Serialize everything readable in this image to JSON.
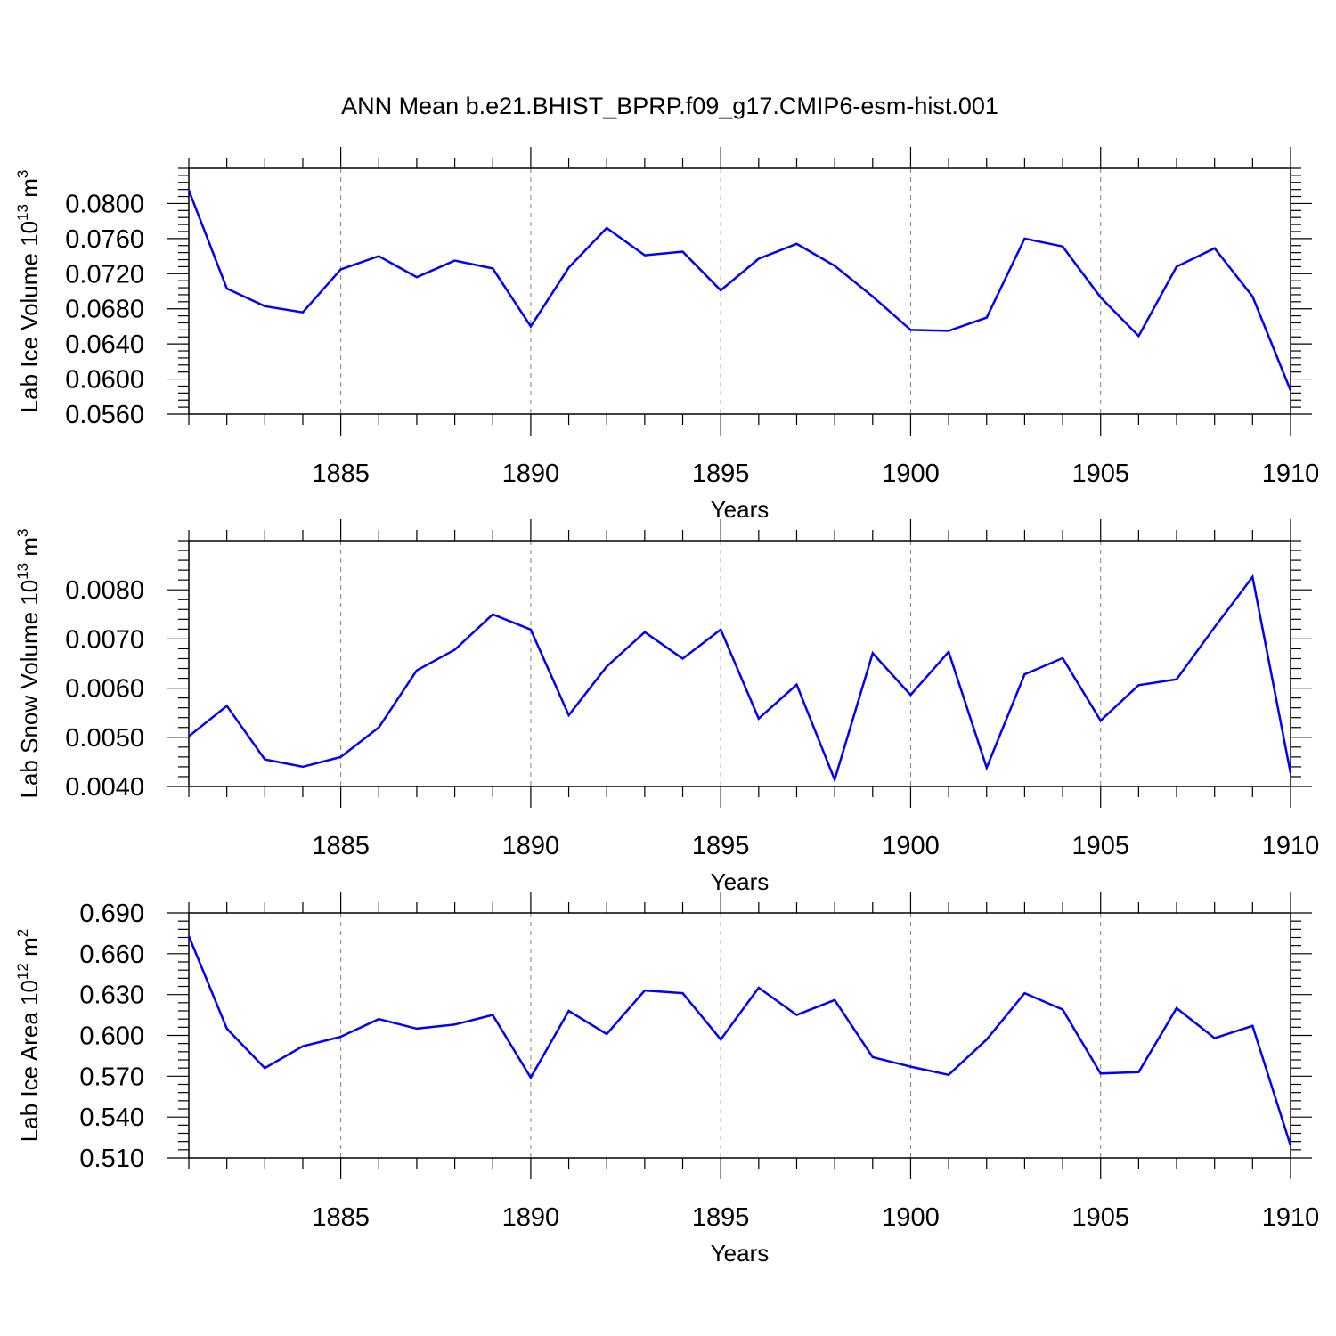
{
  "title": "ANN Mean b.e21.BHIST_BPRP.f09_g17.CMIP6-esm-hist.001",
  "colors": {
    "line": "#0000ff",
    "axis": "#000000",
    "grid": "#808080"
  },
  "chart_data": [
    {
      "type": "line",
      "xlabel": "Years",
      "ylabel": {
        "prefix": "Lab Ice Volume 10",
        "exp": "13",
        "unit": " m",
        "unit_exp": "3"
      },
      "xlim": [
        1881,
        1910
      ],
      "ylim": [
        0.056,
        0.084
      ],
      "grid": true,
      "xticks": [
        1885,
        1890,
        1895,
        1900,
        1905,
        1910
      ],
      "xtick_labels": [
        "1885",
        "1890",
        "1895",
        "1900",
        "1905",
        "1910"
      ],
      "yticks": [
        0.056,
        0.06,
        0.064,
        0.068,
        0.072,
        0.076,
        0.08
      ],
      "ytick_labels": [
        "0.0560",
        "0.0600",
        "0.0640",
        "0.0680",
        "0.0720",
        "0.0760",
        "0.0800"
      ],
      "x": [
        1881,
        1882,
        1883,
        1884,
        1885,
        1886,
        1887,
        1888,
        1889,
        1890,
        1891,
        1892,
        1893,
        1894,
        1895,
        1896,
        1897,
        1898,
        1899,
        1900,
        1901,
        1902,
        1903,
        1904,
        1905,
        1906,
        1907,
        1908,
        1909,
        1910
      ],
      "series": [
        {
          "values": [
            0.0815,
            0.0703,
            0.0683,
            0.0676,
            0.0725,
            0.074,
            0.0716,
            0.0735,
            0.0726,
            0.066,
            0.0727,
            0.0772,
            0.0741,
            0.0745,
            0.0701,
            0.0737,
            0.0754,
            0.0729,
            0.0694,
            0.0656,
            0.0655,
            0.067,
            0.076,
            0.0751,
            0.0693,
            0.0649,
            0.0728,
            0.0749,
            0.0694,
            0.0587
          ]
        }
      ]
    },
    {
      "type": "line",
      "xlabel": "Years",
      "ylabel": {
        "prefix": "Lab Snow Volume 10",
        "exp": "13",
        "unit": " m",
        "unit_exp": "3"
      },
      "xlim": [
        1881,
        1910
      ],
      "ylim": [
        0.004,
        0.009
      ],
      "grid": true,
      "xticks": [
        1885,
        1890,
        1895,
        1900,
        1905,
        1910
      ],
      "xtick_labels": [
        "1885",
        "1890",
        "1895",
        "1900",
        "1905",
        "1910"
      ],
      "yticks": [
        0.004,
        0.005,
        0.006,
        0.007,
        0.008
      ],
      "ytick_labels": [
        "0.0040",
        "0.0050",
        "0.0060",
        "0.0070",
        "0.0080"
      ],
      "x": [
        1881,
        1882,
        1883,
        1884,
        1885,
        1886,
        1887,
        1888,
        1889,
        1890,
        1891,
        1892,
        1893,
        1894,
        1895,
        1896,
        1897,
        1898,
        1899,
        1900,
        1901,
        1902,
        1903,
        1904,
        1905,
        1906,
        1907,
        1908,
        1909,
        1910
      ],
      "series": [
        {
          "values": [
            0.00502,
            0.00564,
            0.00455,
            0.0044,
            0.0046,
            0.0052,
            0.00636,
            0.00678,
            0.0075,
            0.00719,
            0.00545,
            0.00644,
            0.00714,
            0.0066,
            0.00719,
            0.00538,
            0.00607,
            0.00414,
            0.00671,
            0.00586,
            0.00674,
            0.00438,
            0.00628,
            0.00661,
            0.00534,
            0.00606,
            0.00618,
            0.00724,
            0.00826,
            0.00427
          ]
        }
      ]
    },
    {
      "type": "line",
      "xlabel": "Years",
      "ylabel": {
        "prefix": "Lab Ice Area 10",
        "exp": "12",
        "unit": " m",
        "unit_exp": "2"
      },
      "xlim": [
        1881,
        1910
      ],
      "ylim": [
        0.51,
        0.69
      ],
      "grid": true,
      "xticks": [
        1885,
        1890,
        1895,
        1900,
        1905,
        1910
      ],
      "xtick_labels": [
        "1885",
        "1890",
        "1895",
        "1900",
        "1905",
        "1910"
      ],
      "yticks": [
        0.51,
        0.54,
        0.57,
        0.6,
        0.63,
        0.66,
        0.69
      ],
      "ytick_labels": [
        "0.510",
        "0.540",
        "0.570",
        "0.600",
        "0.630",
        "0.660",
        "0.690"
      ],
      "x": [
        1881,
        1882,
        1883,
        1884,
        1885,
        1886,
        1887,
        1888,
        1889,
        1890,
        1891,
        1892,
        1893,
        1894,
        1895,
        1896,
        1897,
        1898,
        1899,
        1900,
        1901,
        1902,
        1903,
        1904,
        1905,
        1906,
        1907,
        1908,
        1909,
        1910
      ],
      "series": [
        {
          "values": [
            0.673,
            0.605,
            0.576,
            0.592,
            0.599,
            0.612,
            0.605,
            0.608,
            0.615,
            0.569,
            0.618,
            0.601,
            0.633,
            0.631,
            0.597,
            0.635,
            0.615,
            0.626,
            0.584,
            0.577,
            0.571,
            0.597,
            0.631,
            0.619,
            0.572,
            0.573,
            0.62,
            0.598,
            0.607,
            0.519
          ]
        }
      ]
    }
  ]
}
